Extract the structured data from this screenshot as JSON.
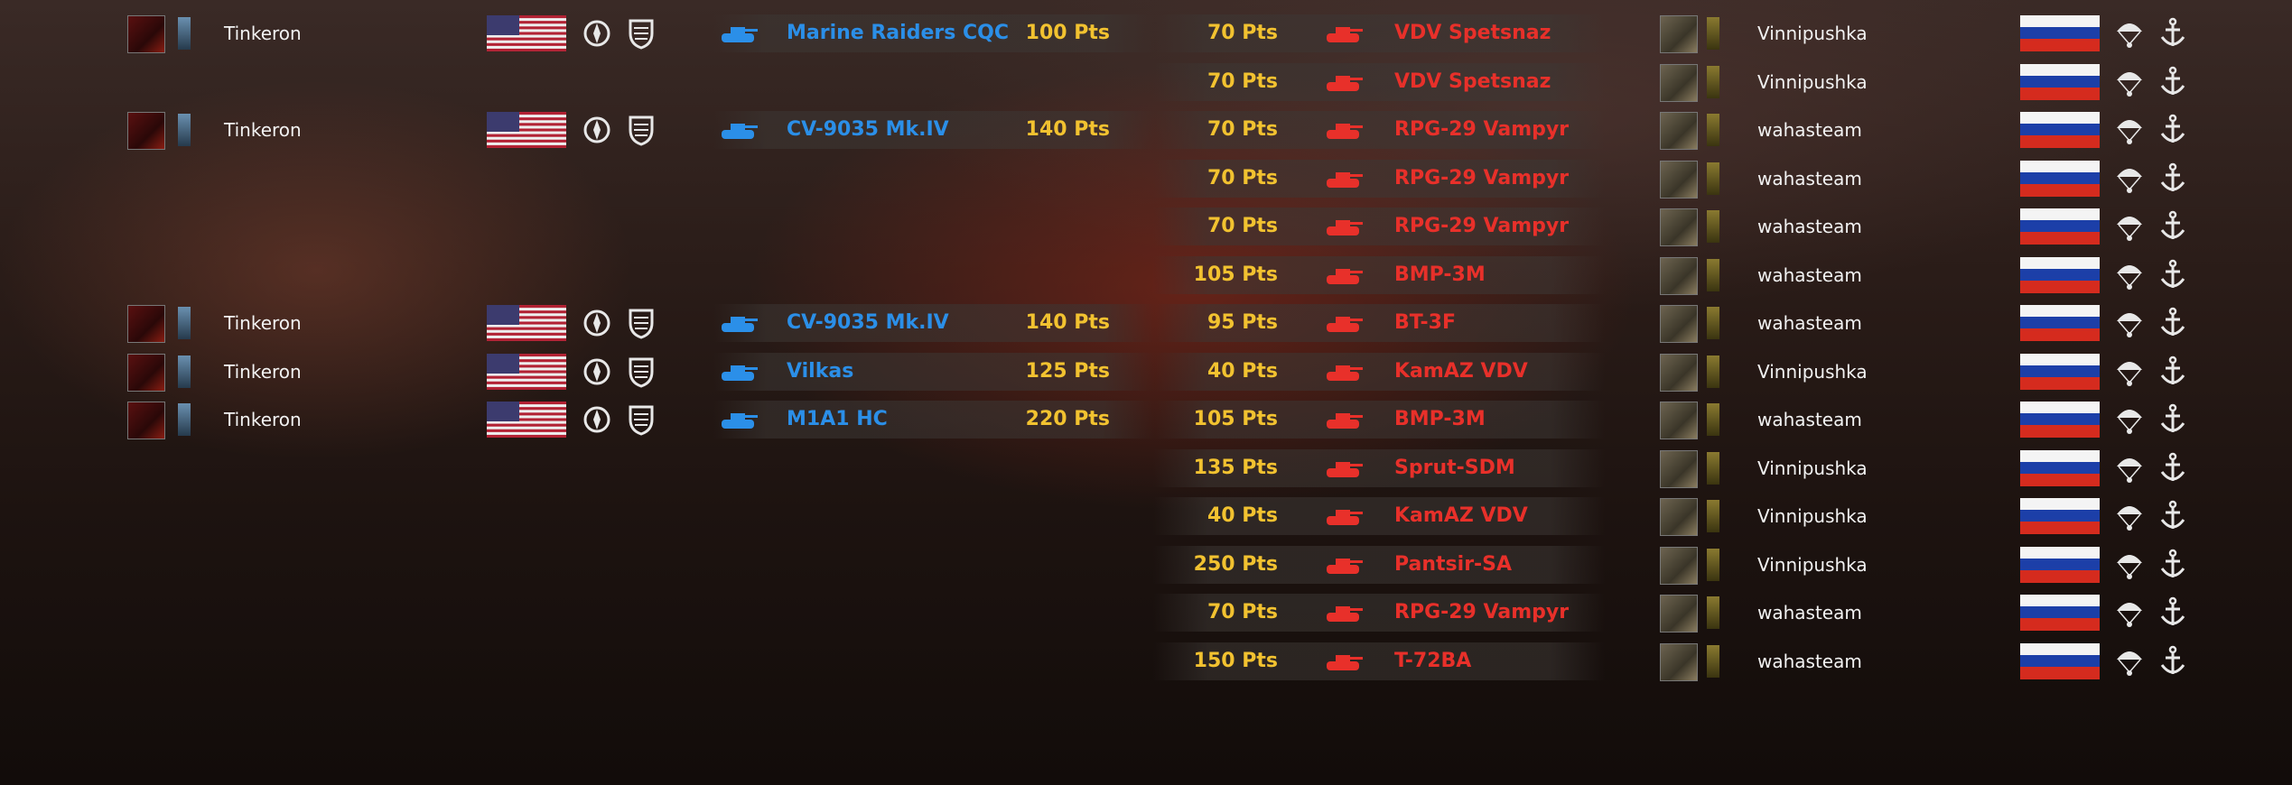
{
  "rows": [
    {
      "left": {
        "player": "Tinkeron",
        "unit": "Marine Raiders CQC",
        "points": "100 Pts"
      },
      "right": {
        "points": "70 Pts",
        "unit": "VDV Spetsnaz",
        "player": "Vinnipushka"
      }
    },
    {
      "right": {
        "points": "70 Pts",
        "unit": "VDV Spetsnaz",
        "player": "Vinnipushka"
      }
    },
    {
      "left": {
        "player": "Tinkeron",
        "unit": "CV-9035 Mk.IV",
        "points": "140 Pts"
      },
      "right": {
        "points": "70 Pts",
        "unit": "RPG-29 Vampyr",
        "player": "wahasteam"
      }
    },
    {
      "right": {
        "points": "70 Pts",
        "unit": "RPG-29 Vampyr",
        "player": "wahasteam"
      }
    },
    {
      "right": {
        "points": "70 Pts",
        "unit": "RPG-29 Vampyr",
        "player": "wahasteam"
      }
    },
    {
      "right": {
        "points": "105 Pts",
        "unit": "BMP-3M",
        "player": "wahasteam"
      }
    },
    {
      "left": {
        "player": "Tinkeron",
        "unit": "CV-9035 Mk.IV",
        "points": "140 Pts"
      },
      "right": {
        "points": "95 Pts",
        "unit": "BT-3F",
        "player": "wahasteam"
      }
    },
    {
      "left": {
        "player": "Tinkeron",
        "unit": "Vilkas",
        "points": "125 Pts"
      },
      "right": {
        "points": "40 Pts",
        "unit": "KamAZ VDV",
        "player": "Vinnipushka"
      }
    },
    {
      "left": {
        "player": "Tinkeron",
        "unit": "M1A1 HC",
        "points": "220 Pts"
      },
      "right": {
        "points": "105 Pts",
        "unit": "BMP-3M",
        "player": "wahasteam"
      }
    },
    {
      "right": {
        "points": "135 Pts",
        "unit": "Sprut-SDM",
        "player": "Vinnipushka"
      }
    },
    {
      "right": {
        "points": "40 Pts",
        "unit": "KamAZ VDV",
        "player": "Vinnipushka"
      }
    },
    {
      "right": {
        "points": "250 Pts",
        "unit": "Pantsir-SA",
        "player": "Vinnipushka"
      }
    },
    {
      "right": {
        "points": "70 Pts",
        "unit": "RPG-29 Vampyr",
        "player": "wahasteam"
      }
    },
    {
      "right": {
        "points": "150 Pts",
        "unit": "T-72BA",
        "player": "wahasteam"
      }
    }
  ]
}
